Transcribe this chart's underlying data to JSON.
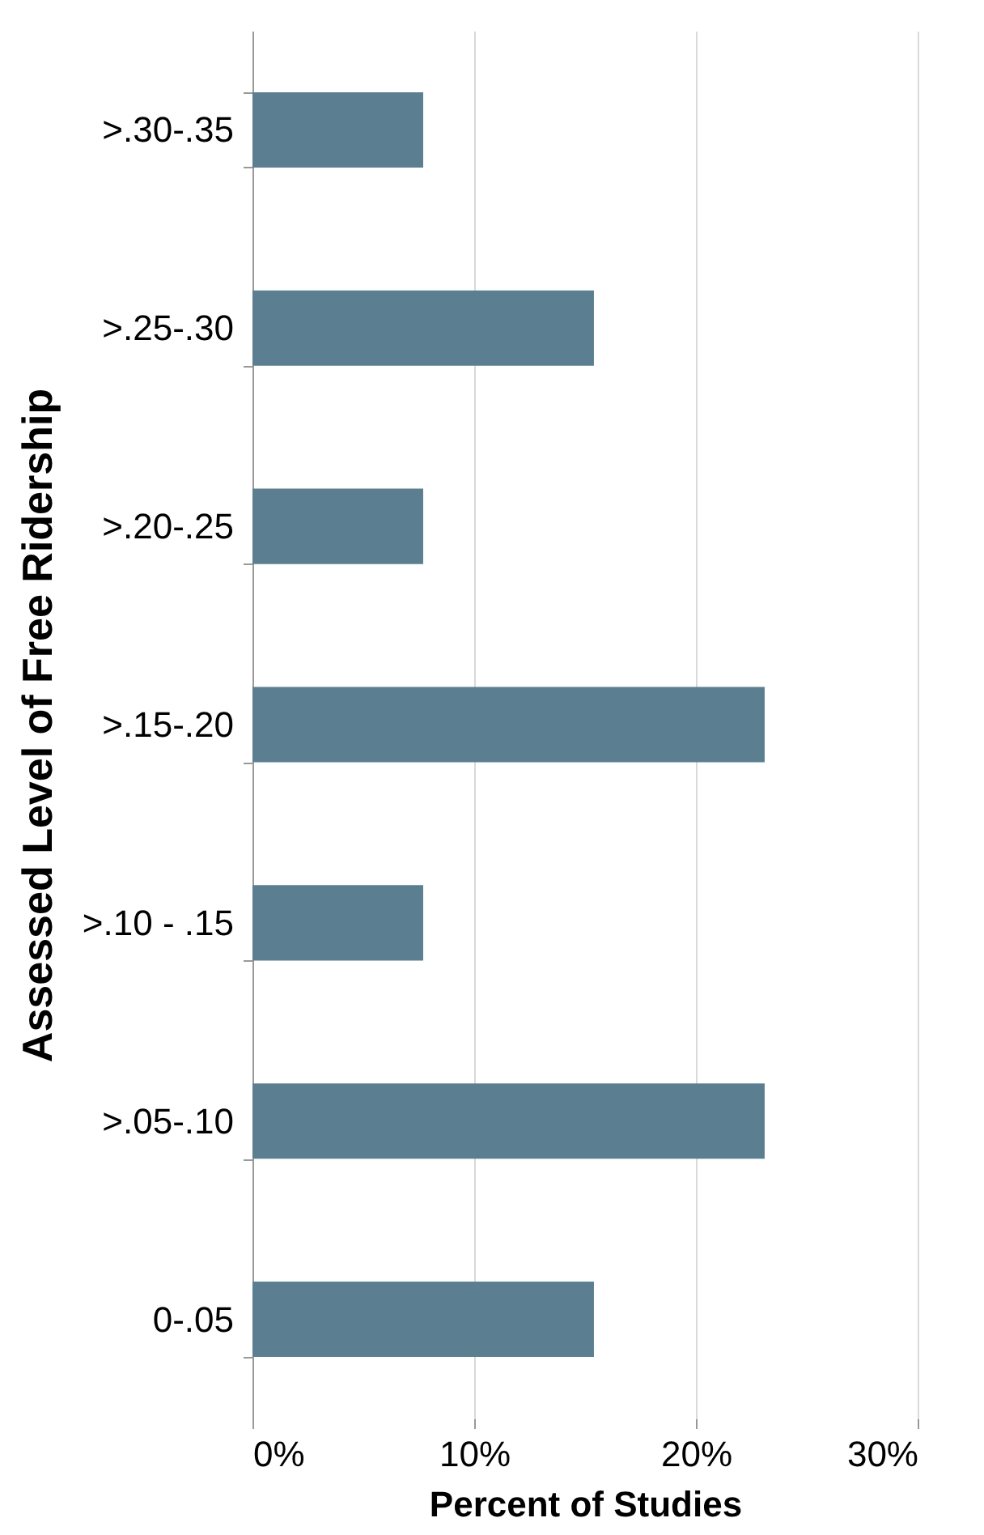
{
  "chart_data": {
    "type": "bar",
    "orientation": "horizontal",
    "xlabel": "Percent of Studies",
    "ylabel": "Assessed Level of Free Ridership",
    "categories": [
      ">.30-.35",
      ">.25-.30",
      ">.20-.25",
      ">.15-.20",
      ">.10 - .15",
      ">.05-.10",
      "0-.05"
    ],
    "values": [
      7.7,
      15.4,
      7.7,
      23.1,
      7.7,
      23.1,
      15.4
    ],
    "color": "#5b7f91",
    "xlim": [
      0,
      30
    ],
    "xticks": [
      {
        "value": 0,
        "label": "0%"
      },
      {
        "value": 10,
        "label": "10%"
      },
      {
        "value": 20,
        "label": "20%"
      },
      {
        "value": 30,
        "label": "30%"
      }
    ],
    "grid": "x"
  }
}
